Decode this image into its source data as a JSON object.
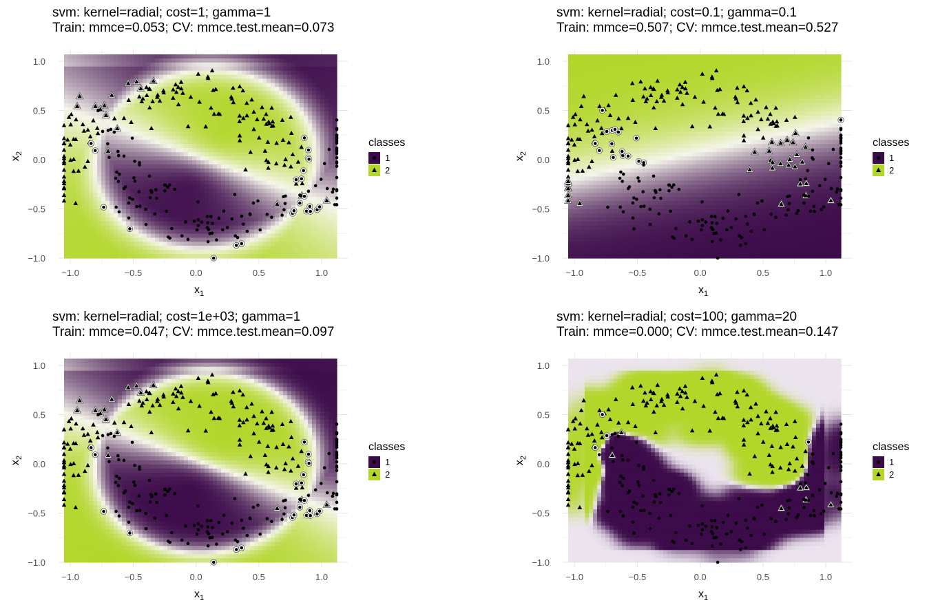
{
  "legend": {
    "title": "classes",
    "items": [
      {
        "label": "1",
        "color": "#3c0b4a",
        "shape": "circle"
      },
      {
        "label": "2",
        "color": "#b3d62a",
        "shape": "triangle"
      }
    ]
  },
  "axes": {
    "x_ticks": [
      "-1.0",
      "-0.5",
      "0.0",
      "0.5",
      "1.0"
    ],
    "y_ticks": [
      "-1.0",
      "-0.5",
      "0.0",
      "0.5",
      "1.0"
    ],
    "xlabel_base": "x",
    "xlabel_sub": "1",
    "ylabel_base": "x",
    "ylabel_sub": "2"
  },
  "chart_data": [
    {
      "type": "scatter",
      "title_line1": "svm: kernel=radial; cost=1; gamma=1",
      "title_line2": "Train: mmce=0.053; CV: mmce.test.mean=0.073",
      "xlim": [
        -1.05,
        1.12
      ],
      "ylim": [
        -1.0,
        1.07
      ],
      "background": "decision surface (two-moons boundary)"
    },
    {
      "type": "scatter",
      "title_line1": "svm: kernel=radial; cost=0.1; gamma=0.1",
      "title_line2": "Train: mmce=0.507; CV: mmce.test.mean=0.527",
      "xlim": [
        -1.05,
        1.12
      ],
      "ylim": [
        -1.0,
        1.07
      ],
      "background": "decision surface (near-linear boundary)"
    },
    {
      "type": "scatter",
      "title_line1": "svm: kernel=radial; cost=1e+03; gamma=1",
      "title_line2": "Train: mmce=0.047; CV: mmce.test.mean=0.097",
      "xlim": [
        -1.05,
        1.12
      ],
      "ylim": [
        -1.0,
        1.07
      ],
      "background": "decision surface (two-moons boundary)"
    },
    {
      "type": "scatter",
      "title_line1": "svm: kernel=radial; cost=100; gamma=20",
      "title_line2": "Train: mmce=0.000; CV: mmce.test.mean=0.147",
      "xlim": [
        -1.05,
        1.12
      ],
      "ylim": [
        -1.0,
        1.07
      ],
      "background": "decision surface (overfit blobs)"
    }
  ]
}
